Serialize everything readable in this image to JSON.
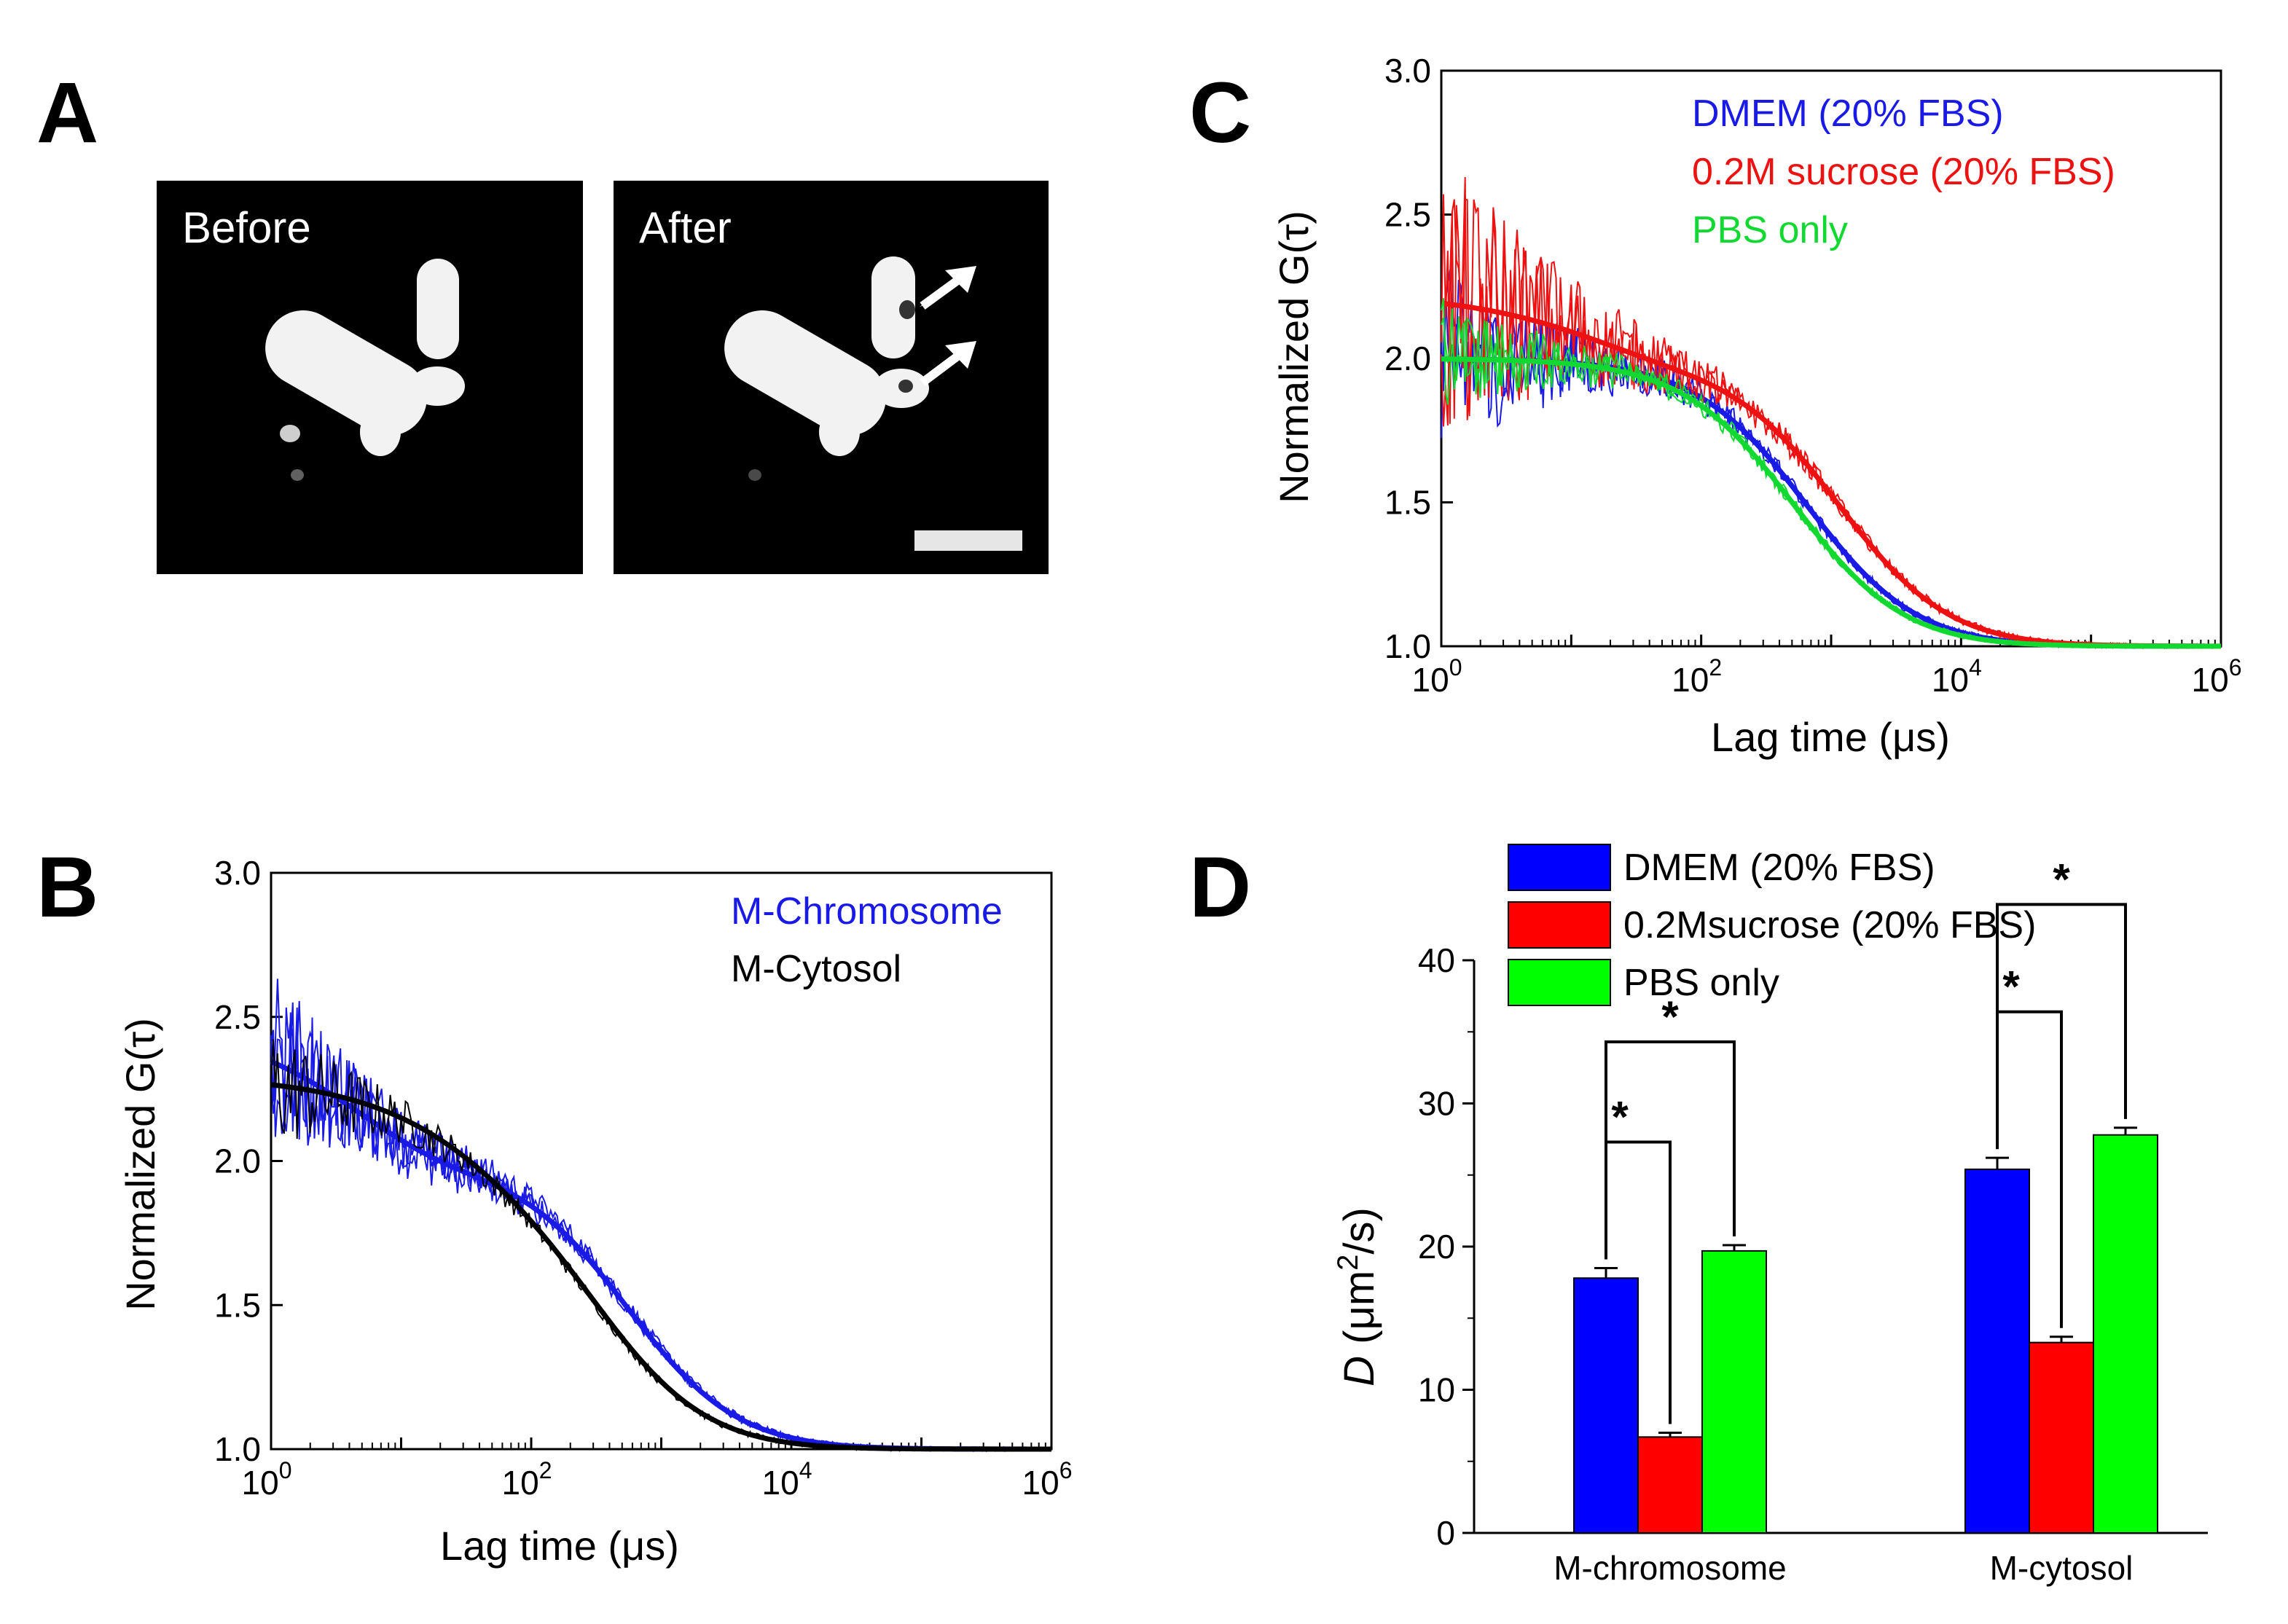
{
  "panels": {
    "A": {
      "letter": "A",
      "before_label": "Before",
      "after_label": "After"
    },
    "B": {
      "letter": "B",
      "legend": [
        "M-Chromosome",
        "M-Cytosol"
      ]
    },
    "C": {
      "letter": "C",
      "legend": [
        "DMEM (20% FBS)",
        "0.2M sucrose (20% FBS)",
        "PBS only"
      ]
    },
    "D": {
      "letter": "D",
      "legend": [
        "DMEM (20% FBS)",
        "0.2Msucrose (20% FBS)",
        "PBS only"
      ]
    }
  },
  "colors": {
    "blue": "#1a1ae6",
    "red": "#ee1111",
    "green": "#11d931",
    "black": "#000000",
    "bar_blue": "#0000ff",
    "bar_red": "#ff0000",
    "bar_green": "#00ff00"
  },
  "chart_data": [
    {
      "id": "B",
      "type": "line",
      "title": "",
      "xlabel": "Lag time (μs)",
      "ylabel": "Normalized G(τ)",
      "xscale": "log",
      "xlim": [
        1,
        1000000
      ],
      "ylim": [
        1.0,
        3.0
      ],
      "xticks": [
        "10^0",
        "10^2",
        "10^4",
        "10^6"
      ],
      "yticks": [
        "1.0",
        "1.5",
        "2.0",
        "2.5",
        "3.0"
      ],
      "legend_position": "top-right",
      "series": [
        {
          "name": "M-Chromosome",
          "color": "#1a1ae6",
          "fit": {
            "plateau": 2.0,
            "tau_fast": 1,
            "tau_diff": 550,
            "start": 2.5
          }
        },
        {
          "name": "M-Cytosol",
          "color": "#000000",
          "fit": {
            "plateau": 2.0,
            "tau_fast": 6,
            "tau_diff": 330,
            "start": 2.3
          }
        }
      ]
    },
    {
      "id": "C",
      "type": "line",
      "title": "",
      "xlabel": "Lag time (μs)",
      "ylabel": "Normalized G(τ)",
      "xscale": "log",
      "xlim": [
        1,
        1000000
      ],
      "ylim": [
        1.0,
        3.0
      ],
      "xticks": [
        "10^0",
        "10^2",
        "10^4",
        "10^6"
      ],
      "yticks": [
        "1.0",
        "1.5",
        "2.0",
        "2.5",
        "3.0"
      ],
      "legend_position": "top-right",
      "series": [
        {
          "name": "DMEM (20% FBS)",
          "color": "#1a1ae6",
          "fit": {
            "plateau": 2.0,
            "tau_diff": 650
          }
        },
        {
          "name": "0.2M sucrose (20% FBS)",
          "color": "#ee1111",
          "fit": {
            "plateau": 2.0,
            "tau_diff": 1150,
            "start": 2.23
          }
        },
        {
          "name": "PBS only",
          "color": "#11d931",
          "fit": {
            "plateau": 2.0,
            "tau_diff": 520
          }
        }
      ]
    },
    {
      "id": "D",
      "type": "bar",
      "title": "",
      "xlabel": "",
      "ylabel": "D (μm²/s)",
      "ylim": [
        0,
        40
      ],
      "yticks": [
        "0",
        "10",
        "20",
        "30",
        "40"
      ],
      "categories": [
        "M-chromosome",
        "M-cytosol"
      ],
      "series": [
        {
          "name": "DMEM (20% FBS)",
          "color": "#0000ff",
          "values": [
            17.8,
            25.4
          ],
          "errors": [
            0.7,
            0.8
          ]
        },
        {
          "name": "0.2Msucrose (20% FBS)",
          "color": "#ff0000",
          "values": [
            6.7,
            13.3
          ],
          "errors": [
            0.3,
            0.4
          ]
        },
        {
          "name": "PBS only",
          "color": "#00ff00",
          "values": [
            19.7,
            27.8
          ],
          "errors": [
            0.4,
            0.5
          ]
        }
      ],
      "significance": [
        "*",
        "*",
        "*",
        "*"
      ]
    }
  ]
}
